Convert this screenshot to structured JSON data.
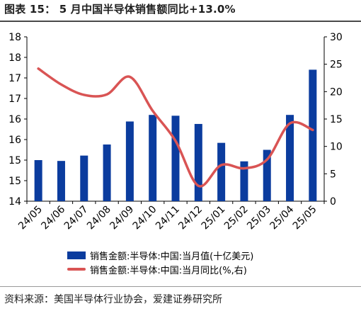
{
  "title": "图表 15： 5 月中国半导体销售额同比+13.0%",
  "source": "资料来源：美国半导体行业协会，爱建证券研究所",
  "colors": {
    "bar": "#0b3c9e",
    "line": "#d95454",
    "axis": "#000000"
  },
  "chart_data": {
    "type": "bar",
    "categories": [
      "24/05",
      "24/06",
      "24/07",
      "24/08",
      "24/09",
      "24/10",
      "24/11",
      "24/12",
      "25/01",
      "25/02",
      "25/03",
      "25/04",
      "25/05"
    ],
    "left_axis": {
      "min": 14,
      "max": 18,
      "ticks": [
        14,
        14.5,
        15,
        15.5,
        16,
        16.5,
        17,
        17.5,
        18
      ],
      "tick_labels": [
        "14",
        "15",
        "15",
        "16",
        "16",
        "17",
        "17",
        "18",
        "18"
      ]
    },
    "right_axis": {
      "min": 0,
      "max": 30,
      "ticks": [
        0,
        5,
        10,
        15,
        20,
        25,
        30
      ],
      "tick_labels": [
        "0",
        "5",
        "10",
        "15",
        "20",
        "25",
        "30"
      ]
    },
    "series": [
      {
        "name": "销售金额:半导体:中国:当月值(十亿美元)",
        "type": "bar",
        "axis": "left",
        "values": [
          15.0,
          14.98,
          15.11,
          15.38,
          15.94,
          16.1,
          16.08,
          15.88,
          15.42,
          14.97,
          15.25,
          16.1,
          17.2
        ]
      },
      {
        "name": "销售金额:半导体:中国:当月同比(%,右)",
        "type": "line",
        "axis": "right",
        "values": [
          24.2,
          21.3,
          19.4,
          19.5,
          22.7,
          16.5,
          11.0,
          2.8,
          6.6,
          6.0,
          7.6,
          14.2,
          13.0
        ]
      }
    ],
    "legend_position": "bottom"
  }
}
